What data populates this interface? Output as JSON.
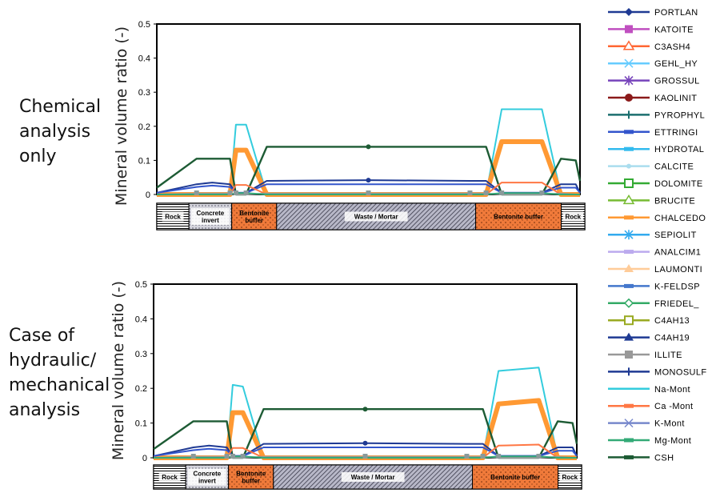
{
  "case_labels": [
    "Chemical\nanalysis\nonly",
    "Case of\nhydraulic/\nmechanical\nanalysis"
  ],
  "regions": [
    {
      "label": "Rock",
      "fill": "brick"
    },
    {
      "label": "Concrete invert",
      "fill": "dots"
    },
    {
      "label": "Bentonite buffer",
      "fill": "orange"
    },
    {
      "label": "Waste / Mortar",
      "fill": "hatch"
    },
    {
      "label": "Bentonite buffer",
      "fill": "orange"
    },
    {
      "label": "Rock",
      "fill": "brick"
    }
  ],
  "legend": [
    {
      "name": "PORTLAN",
      "color": "#1f3a93",
      "marker": "diamond"
    },
    {
      "name": "KATOITE",
      "color": "#c04fc0",
      "marker": "square"
    },
    {
      "name": "C3ASH4",
      "color": "#ff6633",
      "marker": "triangle-open"
    },
    {
      "name": "GEHL_HY",
      "color": "#66ccff",
      "marker": "x"
    },
    {
      "name": "GROSSUL",
      "color": "#7744bb",
      "marker": "star"
    },
    {
      "name": "KAOLINIT",
      "color": "#8b1a1a",
      "marker": "circle"
    },
    {
      "name": "PYROPHYL",
      "color": "#1b6f6f",
      "marker": "plus"
    },
    {
      "name": "ETTRINGI",
      "color": "#3355cc",
      "marker": "dash"
    },
    {
      "name": "HYDROTAL",
      "color": "#33bbee",
      "marker": "dash"
    },
    {
      "name": "CALCITE",
      "color": "#aaddee",
      "marker": "dot"
    },
    {
      "name": "DOLOMITE",
      "color": "#33aa33",
      "marker": "square-open"
    },
    {
      "name": "BRUCITE",
      "color": "#77bb33",
      "marker": "triangle-open"
    },
    {
      "name": "CHALCEDO",
      "color": "#ff9933",
      "marker": "dash"
    },
    {
      "name": "SEPIOLIT",
      "color": "#33aaee",
      "marker": "star"
    },
    {
      "name": "ANALCIM1",
      "color": "#bbaaee",
      "marker": "dash"
    },
    {
      "name": "LAUMONTI",
      "color": "#ffcc99",
      "marker": "triangle"
    },
    {
      "name": "K-FELDSP",
      "color": "#4477cc",
      "marker": "dash"
    },
    {
      "name": "FRIEDEL_",
      "color": "#33aa66",
      "marker": "diamond-open"
    },
    {
      "name": "C4AH13",
      "color": "#99aa22",
      "marker": "square-open"
    },
    {
      "name": "C4AH19",
      "color": "#1f3a93",
      "marker": "triangle"
    },
    {
      "name": "ILLITE",
      "color": "#999999",
      "marker": "square"
    },
    {
      "name": "MONOSULF",
      "color": "#1f3a93",
      "marker": "plus"
    },
    {
      "name": "Na-Mont",
      "color": "#33ccdd",
      "marker": "none"
    },
    {
      "name": "Ca -Mont",
      "color": "#ff7744",
      "marker": "dash"
    },
    {
      "name": "K-Mont",
      "color": "#7788cc",
      "marker": "x"
    },
    {
      "name": "Mg-Mont",
      "color": "#33aa77",
      "marker": "dash"
    },
    {
      "name": "CSH",
      "color": "#1d5b34",
      "marker": "dash"
    }
  ],
  "chart_data": [
    {
      "type": "line",
      "title": "Chemical analysis only",
      "ylabel": "Mineral volume ratio (-)",
      "xlabel": "",
      "ylim": [
        0,
        0.5
      ],
      "yticks": [
        "0",
        "0.1",
        "0.2",
        "0.3",
        "0.4",
        "0.5"
      ],
      "grid": false,
      "legend_position": "right",
      "x": [
        0,
        4,
        6,
        8,
        9,
        10,
        12,
        23,
        34,
        36,
        38,
        43,
        45,
        47,
        48
      ],
      "series": [
        {
          "name": "Na-Mont",
          "values": [
            0,
            0,
            0,
            0,
            0.205,
            0.205,
            0,
            0,
            0,
            0,
            0.25,
            0.25,
            0,
            0,
            0
          ]
        },
        {
          "name": "CHALCEDO",
          "values": [
            0,
            0,
            0,
            0,
            0.13,
            0.13,
            0,
            0,
            0,
            0,
            0.155,
            0.155,
            0,
            0,
            0
          ]
        },
        {
          "name": "CSH",
          "values": [
            0.02,
            0.105,
            0.105,
            0.105,
            0,
            0,
            0.14,
            0.14,
            0.14,
            0.14,
            0,
            0,
            0.105,
            0.1,
            0.04
          ]
        },
        {
          "name": "PORTLAN",
          "values": [
            0.005,
            0.03,
            0.035,
            0.03,
            0.005,
            0.005,
            0.04,
            0.042,
            0.04,
            0.04,
            0.005,
            0.005,
            0.03,
            0.03,
            0.005
          ]
        },
        {
          "name": "ETTRINGI",
          "values": [
            0.005,
            0.022,
            0.026,
            0.022,
            0.005,
            0.005,
            0.03,
            0.03,
            0.03,
            0.03,
            0.005,
            0.005,
            0.02,
            0.02,
            0.005
          ]
        },
        {
          "name": "Ca -Mont",
          "values": [
            0,
            0,
            0,
            0,
            0.028,
            0.028,
            0,
            0,
            0,
            0,
            0.035,
            0.035,
            0,
            0,
            0
          ]
        },
        {
          "name": "ILLITE",
          "values": [
            0,
            0.003,
            0.003,
            0.003,
            0,
            0,
            0.003,
            0.003,
            0.003,
            0.003,
            0,
            0,
            0.003,
            0,
            0
          ]
        },
        {
          "name": "Mg-Mont",
          "values": [
            0,
            0,
            0,
            0,
            0.004,
            0.004,
            0,
            0,
            0,
            0,
            0.004,
            0.004,
            0,
            0,
            0
          ]
        }
      ]
    },
    {
      "type": "line",
      "title": "Case of hydraulic/ mechanical analysis",
      "ylabel": "Mineral volume ratio (-)",
      "xlabel": "",
      "ylim": [
        0,
        0.5
      ],
      "yticks": [
        "0",
        "0.1",
        "0.2",
        "0.3",
        "0.4",
        "0.5"
      ],
      "grid": false,
      "legend_position": "right",
      "x": [
        0,
        4,
        6,
        8,
        9,
        10,
        12,
        23,
        34,
        36,
        38,
        43,
        45,
        47,
        48
      ],
      "series": [
        {
          "name": "Na-Mont",
          "values": [
            0,
            0,
            0,
            0,
            0.21,
            0.205,
            0,
            0,
            0,
            0,
            0.25,
            0.26,
            0,
            0,
            0
          ]
        },
        {
          "name": "CHALCEDO",
          "values": [
            0,
            0,
            0,
            0,
            0.13,
            0.13,
            0,
            0,
            0,
            0,
            0.155,
            0.165,
            0,
            0,
            0
          ]
        },
        {
          "name": "CSH",
          "values": [
            0.025,
            0.105,
            0.105,
            0.105,
            0,
            0,
            0.14,
            0.14,
            0.14,
            0.14,
            0,
            0,
            0.105,
            0.1,
            0.04
          ]
        },
        {
          "name": "PORTLAN",
          "values": [
            0.005,
            0.03,
            0.035,
            0.03,
            0.005,
            0.005,
            0.04,
            0.042,
            0.04,
            0.04,
            0.005,
            0.005,
            0.03,
            0.03,
            0.005
          ]
        },
        {
          "name": "ETTRINGI",
          "values": [
            0.005,
            0.022,
            0.026,
            0.022,
            0.005,
            0.005,
            0.03,
            0.03,
            0.03,
            0.03,
            0.005,
            0.005,
            0.02,
            0.02,
            0.005
          ]
        },
        {
          "name": "Ca -Mont",
          "values": [
            0,
            0,
            0,
            0,
            0.028,
            0.028,
            0,
            0,
            0,
            0,
            0.035,
            0.038,
            0,
            0,
            0
          ]
        },
        {
          "name": "ILLITE",
          "values": [
            0,
            0.003,
            0.003,
            0.003,
            0,
            0,
            0.003,
            0.003,
            0.003,
            0.003,
            0,
            0,
            0.003,
            0,
            0
          ]
        },
        {
          "name": "Mg-Mont",
          "values": [
            0,
            0,
            0,
            0,
            0.004,
            0.004,
            0,
            0,
            0,
            0,
            0.004,
            0.004,
            0,
            0,
            0
          ]
        }
      ]
    }
  ]
}
